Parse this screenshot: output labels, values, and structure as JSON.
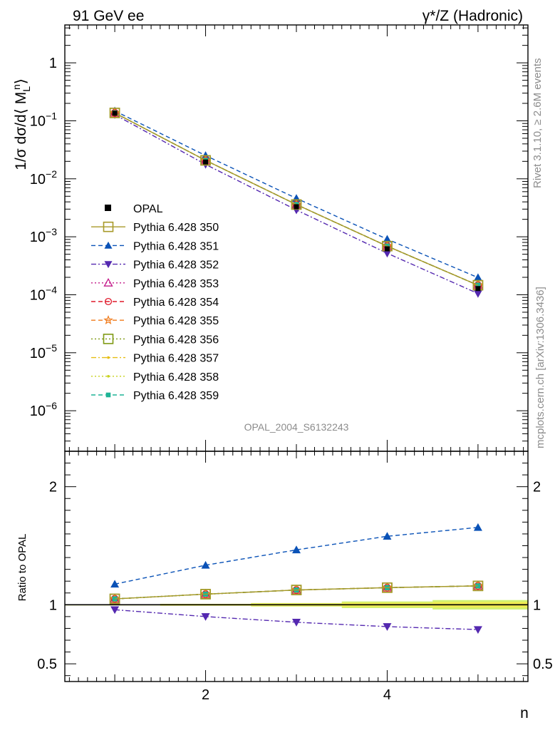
{
  "header": {
    "left": "91 GeV ee",
    "right": "γ*/Z (Hadronic)"
  },
  "side_text": {
    "rivet": "Rivet 3.1.10, ≥ 2.6M events",
    "mcplots": "mcplots.cern.ch [arXiv:1306.3436]"
  },
  "watermark": "OPAL_2004_S6132243",
  "chart_data": [
    {
      "type": "line",
      "panel": "main",
      "ylabel": "1/σ dσ/d⟨ M_L^n⟩",
      "xlabel": "n",
      "xlim": [
        0.45,
        5.55
      ],
      "ylim": [
        2e-07,
        4.5
      ],
      "yscale": "log",
      "y_tick_labels": [
        "10^-6",
        "10^-5",
        "10^-4",
        "10^-3",
        "10^-2",
        "10^-1",
        "1"
      ],
      "x": [
        1,
        2,
        3,
        4,
        5
      ],
      "data": {
        "name": "OPAL",
        "values": [
          0.135,
          0.0195,
          0.0033,
          0.00062,
          0.000128
        ]
      },
      "legend_position": "center-left",
      "series": [
        {
          "name": "Pythia 6.428 350",
          "color": "#a89a2a",
          "dash": "solid",
          "marker": "open-square",
          "values": [
            0.137,
            0.0208,
            0.0036,
            0.00069,
            0.000146
          ]
        },
        {
          "name": "Pythia 6.428 351",
          "color": "#0a52b7",
          "dash": "dashed",
          "marker": "triangle-up",
          "values": [
            0.148,
            0.0252,
            0.0046,
            0.00091,
            0.000198
          ]
        },
        {
          "name": "Pythia 6.428 352",
          "color": "#5428b0",
          "dash": "dashdot",
          "marker": "triangle-down",
          "values": [
            0.128,
            0.0177,
            0.0029,
            0.00052,
            0.000105
          ]
        },
        {
          "name": "Pythia 6.428 353",
          "color": "#c31a8a",
          "dash": "dotted",
          "marker": "open-triangle",
          "values": [
            0.137,
            0.0208,
            0.0036,
            0.00069,
            0.000146
          ]
        },
        {
          "name": "Pythia 6.428 354",
          "color": "#e0192a",
          "dash": "dashed",
          "marker": "open-circle",
          "values": [
            0.137,
            0.0208,
            0.0036,
            0.00069,
            0.000146
          ]
        },
        {
          "name": "Pythia 6.428 355",
          "color": "#f07a1a",
          "dash": "dashed",
          "marker": "open-star",
          "values": [
            0.137,
            0.0208,
            0.0036,
            0.00069,
            0.000146
          ]
        },
        {
          "name": "Pythia 6.428 356",
          "color": "#7f9a14",
          "dash": "dotted",
          "marker": "open-square",
          "values": [
            0.137,
            0.0208,
            0.0036,
            0.00069,
            0.000146
          ]
        },
        {
          "name": "Pythia 6.428 357",
          "color": "#e6be14",
          "dash": "dashdot",
          "marker": "small-dot",
          "values": [
            0.137,
            0.0208,
            0.0036,
            0.00069,
            0.000146
          ]
        },
        {
          "name": "Pythia 6.428 358",
          "color": "#c8d21e",
          "dash": "dotted",
          "marker": "small-dot",
          "values": [
            0.137,
            0.0208,
            0.0036,
            0.00069,
            0.000146
          ]
        },
        {
          "name": "Pythia 6.428 359",
          "color": "#1eb496",
          "dash": "dashed",
          "marker": "filled-square",
          "values": [
            0.137,
            0.0208,
            0.0036,
            0.00069,
            0.000146
          ]
        }
      ]
    },
    {
      "type": "line",
      "panel": "ratio",
      "ylabel": "Ratio to OPAL",
      "xlabel": "n",
      "xlim": [
        0.45,
        5.55
      ],
      "ylim": [
        0.35,
        2.3
      ],
      "x_tick_labels": [
        "2",
        "4"
      ],
      "y_tick_labels": [
        "0.5",
        "1",
        "2"
      ],
      "x": [
        1,
        2,
        3,
        4,
        5
      ],
      "band": {
        "x": [
          0.45,
          1.5,
          2.5,
          3.5,
          4.5,
          5.55
        ],
        "lo": [
          0.995,
          0.992,
          0.985,
          0.972,
          0.96,
          0.96
        ],
        "hi": [
          1.005,
          1.008,
          1.015,
          1.028,
          1.04,
          1.04
        ]
      },
      "series": [
        {
          "name": "Pythia 6.428 350",
          "values": [
            1.05,
            1.09,
            1.125,
            1.145,
            1.16
          ]
        },
        {
          "name": "Pythia 6.428 351",
          "values": [
            1.175,
            1.335,
            1.465,
            1.58,
            1.655
          ]
        },
        {
          "name": "Pythia 6.428 352",
          "values": [
            0.958,
            0.9,
            0.852,
            0.815,
            0.79
          ]
        },
        {
          "name": "Pythia 6.428 353",
          "values": [
            1.05,
            1.09,
            1.125,
            1.145,
            1.16
          ]
        },
        {
          "name": "Pythia 6.428 354",
          "values": [
            1.05,
            1.09,
            1.125,
            1.145,
            1.16
          ]
        },
        {
          "name": "Pythia 6.428 355",
          "values": [
            1.05,
            1.09,
            1.125,
            1.145,
            1.16
          ]
        },
        {
          "name": "Pythia 6.428 356",
          "values": [
            1.05,
            1.09,
            1.125,
            1.145,
            1.16
          ]
        },
        {
          "name": "Pythia 6.428 357",
          "values": [
            1.05,
            1.09,
            1.125,
            1.145,
            1.16
          ]
        },
        {
          "name": "Pythia 6.428 358",
          "values": [
            1.05,
            1.09,
            1.125,
            1.145,
            1.16
          ]
        },
        {
          "name": "Pythia 6.428 359",
          "values": [
            1.05,
            1.09,
            1.125,
            1.145,
            1.16
          ]
        }
      ]
    }
  ]
}
